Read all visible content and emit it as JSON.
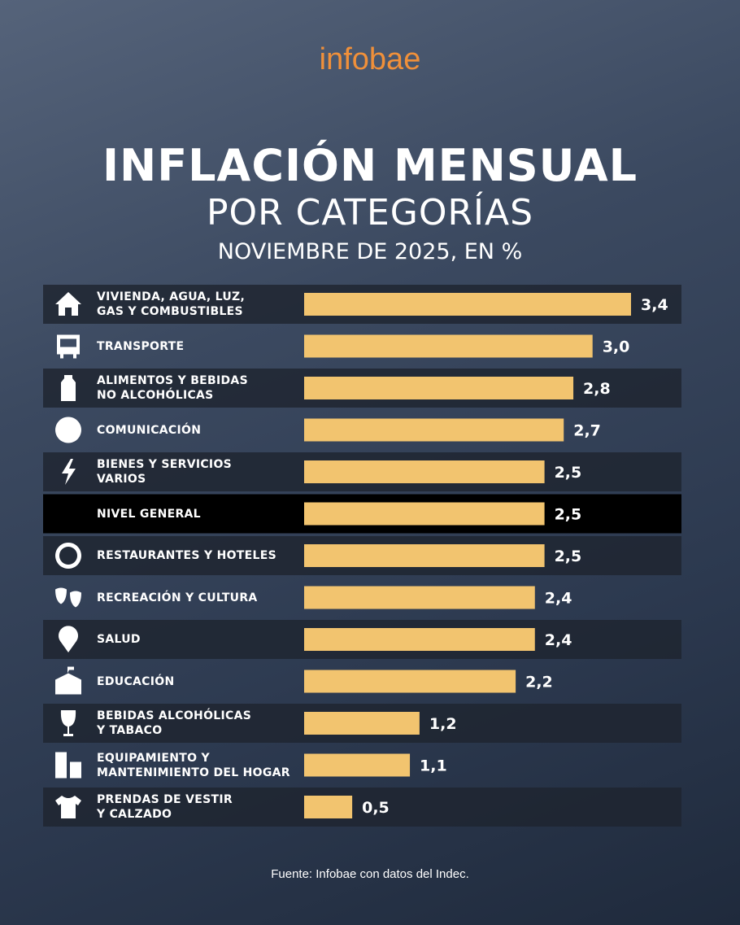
{
  "logo": "infobae",
  "chart_data": {
    "type": "bar",
    "orientation": "horizontal",
    "title": "INFLACIÓN MENSUAL",
    "subtitle": "POR CATEGORÍAS",
    "period": "NOVIEMBRE DE 2025, EN %",
    "categories": [
      "VIVIENDA, AGUA, LUZ,\nGAS Y COMBUSTIBLES",
      "TRANSPORTE",
      "ALIMENTOS Y BEBIDAS\nNO ALCOHÓLICAS",
      "COMUNICACIÓN",
      "BIENES Y SERVICIOS\nVARIOS",
      "NIVEL GENERAL",
      "RESTAURANTES Y HOTELES",
      "RECREACIÓN Y CULTURA",
      "SALUD",
      "EDUCACIÓN",
      "BEBIDAS ALCOHÓLICAS\nY TABACO",
      "EQUIPAMIENTO Y\nMANTENIMIENTO DEL HOGAR",
      "PRENDAS DE VESTIR\nY CALZADO"
    ],
    "values": [
      3.4,
      3.0,
      2.8,
      2.7,
      2.5,
      2.5,
      2.5,
      2.4,
      2.4,
      2.2,
      1.2,
      1.1,
      0.5
    ],
    "value_labels": [
      "3,4",
      "3,0",
      "2,8",
      "2,7",
      "2,5",
      "2,5",
      "2,5",
      "2,4",
      "2,4",
      "2,2",
      "1,2",
      "1,1",
      "0,5"
    ],
    "color": "#f2c46f",
    "highlight_index": 5,
    "source": "Fuente: Infobae con datos del Indec."
  }
}
